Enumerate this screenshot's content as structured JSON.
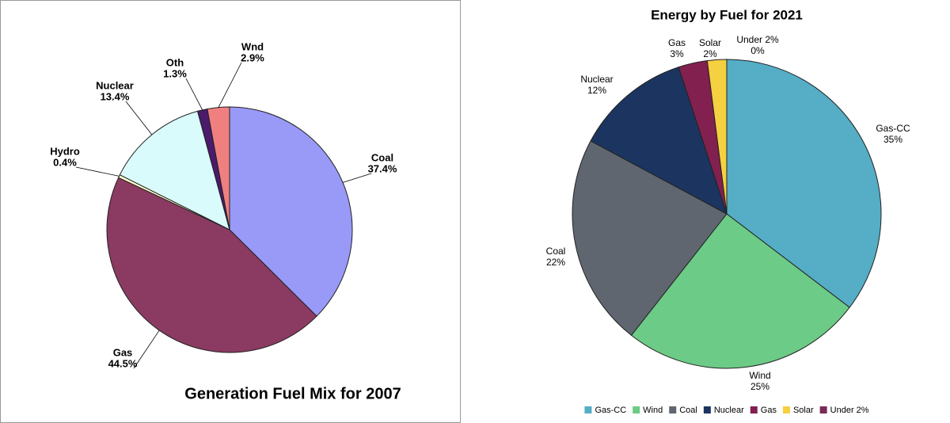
{
  "chart_data": [
    {
      "type": "pie",
      "title": "Generation Fuel Mix for 2007",
      "categories": [
        "Coal",
        "Gas",
        "Hydro",
        "Nuclear",
        "Oth",
        "Wnd"
      ],
      "values": [
        37.4,
        44.5,
        0.4,
        13.4,
        1.3,
        2.9
      ],
      "value_labels": [
        "37.4%",
        "44.5%",
        "0.4%",
        "13.4%",
        "1.3%",
        "2.9%"
      ],
      "colors": [
        "#9999f8",
        "#8b3a62",
        "#ffffcc",
        "#d9fbfb",
        "#4b1a6b",
        "#f08080"
      ]
    },
    {
      "type": "pie",
      "title": "Energy by Fuel for 2021",
      "categories": [
        "Gas-CC",
        "Wind",
        "Coal",
        "Nuclear",
        "Gas",
        "Solar",
        "Under 2%"
      ],
      "values": [
        35,
        25,
        22,
        12,
        3,
        2,
        0
      ],
      "value_labels": [
        "35%",
        "25%",
        "22%",
        "12%",
        "3%",
        "2%",
        "0%"
      ],
      "colors": [
        "#55adc6",
        "#6ccb86",
        "#5f6670",
        "#1b3560",
        "#82204f",
        "#f5d040",
        "#7a2a55"
      ],
      "legend": "bottom"
    }
  ]
}
